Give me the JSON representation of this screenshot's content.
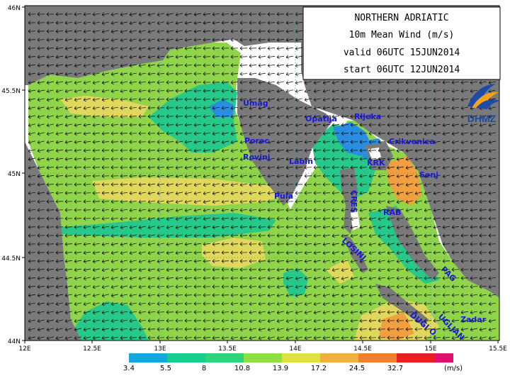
{
  "title": {
    "line1": "NORTHERN ADRIATIC",
    "line2": "10m Mean Wind (m/s)",
    "line3": "valid 06UTC 15JUN2014",
    "line4": "start 06UTC 12JUN2014"
  },
  "logo": {
    "text": "DHMZ",
    "colors": [
      "#1e4aa8",
      "#f2a21b"
    ]
  },
  "axes": {
    "y_ticks": [
      "46N",
      "45.5N",
      "45N",
      "44.5N",
      "44N"
    ],
    "x_ticks": [
      "12E",
      "12.5E",
      "13E",
      "13.5E",
      "14E",
      "14.5E",
      "15E",
      "15.5E"
    ]
  },
  "places": [
    {
      "name": "Umag",
      "color": "#1a1ad6"
    },
    {
      "name": "Opatija",
      "color": "#1a1ad6"
    },
    {
      "name": "Rijeka",
      "color": "#1a1ad6"
    },
    {
      "name": "Porec",
      "color": "#1a1ad6"
    },
    {
      "name": "Crikvenica",
      "color": "#1a1ad6"
    },
    {
      "name": "Rovinj",
      "color": "#1a1ad6"
    },
    {
      "name": "Labin",
      "color": "#1a1ad6"
    },
    {
      "name": "KRK",
      "color": "#1a1ad6"
    },
    {
      "name": "Senj",
      "color": "#1a1ad6"
    },
    {
      "name": "Pula",
      "color": "#1a1ad6"
    },
    {
      "name": "CRES",
      "color": "#1a1ad6"
    },
    {
      "name": "RAB",
      "color": "#1a1ad6"
    },
    {
      "name": "LOSINJ",
      "color": "#1a1ad6"
    },
    {
      "name": "PAG",
      "color": "#1a1ad6"
    },
    {
      "name": "Zadar",
      "color": "#1a1ad6"
    },
    {
      "name": "UGLJAN",
      "color": "#1a1ad6"
    },
    {
      "name": "DUGI O.",
      "color": "#1a1ad6"
    }
  ],
  "legend": {
    "values": [
      "3.4",
      "5.5",
      "8",
      "10.8",
      "13.9",
      "17.2",
      "24.5",
      "32.7"
    ],
    "unit": "(m/s)",
    "colors": [
      "#15a8e0",
      "#18cc8e",
      "#2fd47a",
      "#8ce040",
      "#e0e040",
      "#f0b040",
      "#f08030",
      "#e82020",
      "#e01070"
    ]
  },
  "field_colors": {
    "land": "#7a7a7a",
    "sea_green": "#8fd44a",
    "sea_teal": "#27c98a",
    "sea_yellow": "#e0d85c",
    "sea_orange": "#f0a040",
    "sea_blue": "#2a8ee0",
    "arrow": "#000000"
  }
}
